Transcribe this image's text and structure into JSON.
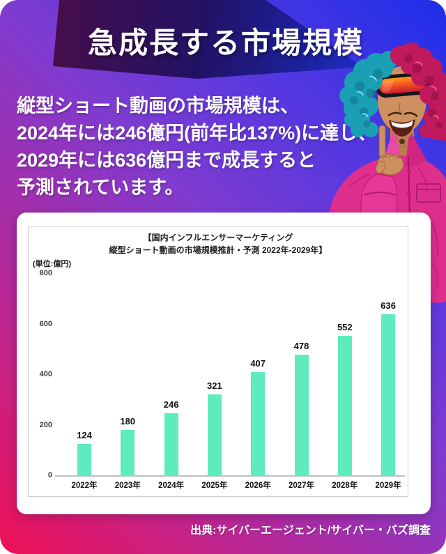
{
  "header": {
    "title": "急成長する市場規模"
  },
  "intro": {
    "lines": [
      "縦型ショート動画の市場規模は、",
      "2024年には246億円(前年比137%)に達し、",
      "2029年には636億円まで成長すると",
      "予測されています。"
    ]
  },
  "chart_data": {
    "type": "bar",
    "title_line1": "【国内インフルエンサーマーケティング",
    "title_line2": "縦型ショート動画の市場規模推計・予測 2022年-2029年】",
    "unit_label": "(単位:億円)",
    "categories": [
      "2022年",
      "2023年",
      "2024年",
      "2025年",
      "2026年",
      "2027年",
      "2028年",
      "2029年"
    ],
    "values": [
      124,
      180,
      246,
      321,
      407,
      478,
      552,
      636
    ],
    "yticks": [
      0,
      200,
      400,
      600,
      800
    ],
    "ylim": [
      0,
      800
    ],
    "bar_color": "#5eebbd",
    "grid": false,
    "legend": false
  },
  "source": {
    "text": "出典:サイバーエージェント/サイバー・バズ調査"
  },
  "colors": {
    "bg_blue": "#1d2ee9",
    "bg_purple": "#7f3bd0",
    "bg_pink": "#ef1157",
    "banner_maroon": "#5c0d3c",
    "banner_navy": "#221264",
    "hair_teal": "#1b9fb5",
    "hair_crimson": "#c11a5c",
    "jacket_pink": "#de2f8c",
    "skin": "#ce9060",
    "lens_orange": "#ff9a1e"
  }
}
